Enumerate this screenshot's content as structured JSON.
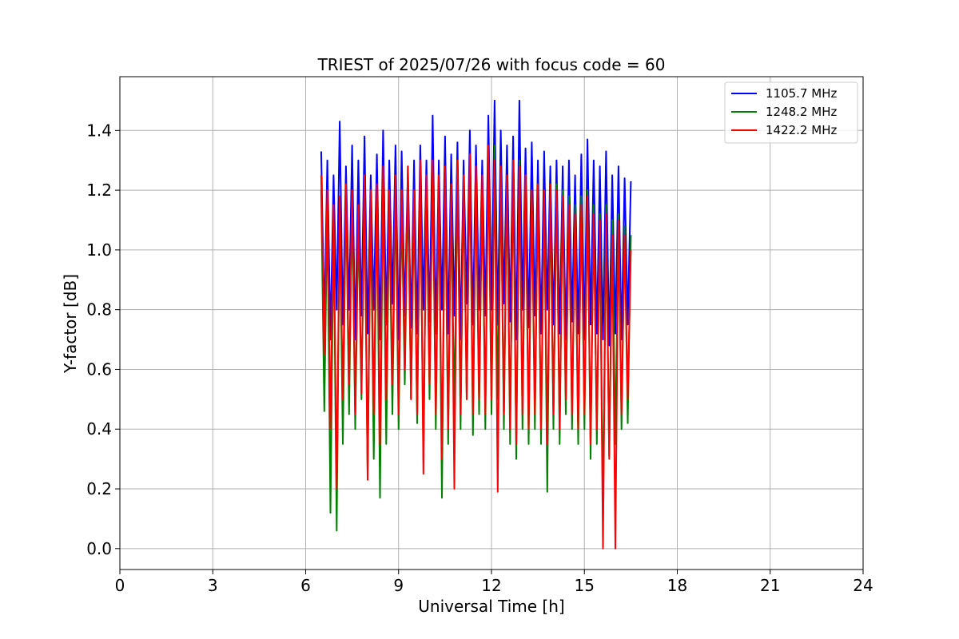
{
  "chart_data": {
    "type": "line",
    "title": "TRIEST of 2025/07/26 with focus code = 60",
    "xlabel": "Universal Time [h]",
    "ylabel": "Y-factor [dB]",
    "xlim": [
      0,
      24
    ],
    "ylim": [
      -0.07,
      1.58
    ],
    "xticks": [
      0,
      3,
      6,
      9,
      12,
      15,
      18,
      21,
      24
    ],
    "xtick_labels": [
      "0",
      "3",
      "6",
      "9",
      "12",
      "15",
      "18",
      "21",
      "24"
    ],
    "yticks": [
      0.0,
      0.2,
      0.4,
      0.6,
      0.8,
      1.0,
      1.2,
      1.4
    ],
    "ytick_labels": [
      "0.0",
      "0.2",
      "0.4",
      "0.6",
      "0.8",
      "1.0",
      "1.2",
      "1.4"
    ],
    "grid": true,
    "legend_position": "top-right",
    "series": [
      {
        "name": "1105.7 MHz",
        "color": "#0000ff",
        "x": [
          6.5,
          6.6,
          6.7,
          6.8,
          6.9,
          7.0,
          7.1,
          7.2,
          7.3,
          7.4,
          7.5,
          7.6,
          7.7,
          7.8,
          7.9,
          8.0,
          8.1,
          8.2,
          8.3,
          8.4,
          8.5,
          8.6,
          8.7,
          8.8,
          8.9,
          9.0,
          9.1,
          9.2,
          9.3,
          9.4,
          9.5,
          9.6,
          9.7,
          9.8,
          9.9,
          10.0,
          10.1,
          10.2,
          10.3,
          10.4,
          10.5,
          10.6,
          10.7,
          10.8,
          10.9,
          11.0,
          11.1,
          11.2,
          11.3,
          11.4,
          11.5,
          11.6,
          11.7,
          11.8,
          11.9,
          12.0,
          12.1,
          12.2,
          12.3,
          12.4,
          12.5,
          12.6,
          12.7,
          12.8,
          12.9,
          13.0,
          13.1,
          13.2,
          13.3,
          13.4,
          13.5,
          13.6,
          13.7,
          13.8,
          13.9,
          14.0,
          14.1,
          14.2,
          14.3,
          14.4,
          14.5,
          14.6,
          14.7,
          14.8,
          14.9,
          15.0,
          15.1,
          15.2,
          15.3,
          15.4,
          15.5,
          15.6,
          15.7,
          15.8,
          15.9,
          16.0,
          16.1,
          16.2,
          16.3,
          16.4,
          16.5
        ],
        "y": [
          1.33,
          0.75,
          1.3,
          0.7,
          1.25,
          0.8,
          1.43,
          0.75,
          1.28,
          0.8,
          1.35,
          0.7,
          1.3,
          0.78,
          1.38,
          0.72,
          1.25,
          0.8,
          1.32,
          0.7,
          1.4,
          0.75,
          1.3,
          0.82,
          1.35,
          0.7,
          1.33,
          0.78,
          1.28,
          0.74,
          1.3,
          0.72,
          1.35,
          0.8,
          1.3,
          0.76,
          1.45,
          0.72,
          1.3,
          0.8,
          1.38,
          0.72,
          1.32,
          0.78,
          1.36,
          0.7,
          1.3,
          0.82,
          1.4,
          0.75,
          1.35,
          0.8,
          1.3,
          0.78,
          1.45,
          0.8,
          1.5,
          0.75,
          1.4,
          0.82,
          1.35,
          0.76,
          1.38,
          0.7,
          1.5,
          0.8,
          1.34,
          0.74,
          1.36,
          0.78,
          1.3,
          0.72,
          1.33,
          0.8,
          1.28,
          0.75,
          1.3,
          0.72,
          1.28,
          0.7,
          1.3,
          0.76,
          1.25,
          0.72,
          1.32,
          0.7,
          1.37,
          0.75,
          1.3,
          0.72,
          1.28,
          0.7,
          1.33,
          0.68,
          1.25,
          0.72,
          1.28,
          0.7,
          1.24,
          0.75,
          1.23
        ]
      },
      {
        "name": "1248.2 MHz",
        "color": "#008000",
        "x": [
          6.5,
          6.6,
          6.7,
          6.8,
          6.9,
          7.0,
          7.1,
          7.2,
          7.3,
          7.4,
          7.5,
          7.6,
          7.7,
          7.8,
          7.9,
          8.0,
          8.1,
          8.2,
          8.3,
          8.4,
          8.5,
          8.6,
          8.7,
          8.8,
          8.9,
          9.0,
          9.1,
          9.2,
          9.3,
          9.4,
          9.5,
          9.6,
          9.7,
          9.8,
          9.9,
          10.0,
          10.1,
          10.2,
          10.3,
          10.4,
          10.5,
          10.6,
          10.7,
          10.8,
          10.9,
          11.0,
          11.1,
          11.2,
          11.3,
          11.4,
          11.5,
          11.6,
          11.7,
          11.8,
          11.9,
          12.0,
          12.1,
          12.2,
          12.3,
          12.4,
          12.5,
          12.6,
          12.7,
          12.8,
          12.9,
          13.0,
          13.1,
          13.2,
          13.3,
          13.4,
          13.5,
          13.6,
          13.7,
          13.8,
          13.9,
          14.0,
          14.1,
          14.2,
          14.3,
          14.4,
          14.5,
          14.6,
          14.7,
          14.8,
          14.9,
          15.0,
          15.1,
          15.2,
          15.3,
          15.4,
          15.5,
          15.6,
          15.7,
          15.8,
          15.9,
          16.0,
          16.1,
          16.2,
          16.3,
          16.4,
          16.5
        ],
        "y": [
          1.2,
          0.46,
          1.15,
          0.12,
          1.1,
          0.06,
          1.15,
          0.35,
          1.2,
          0.45,
          1.18,
          0.4,
          1.1,
          0.5,
          1.2,
          0.25,
          1.15,
          0.3,
          1.2,
          0.17,
          1.25,
          0.35,
          1.15,
          0.45,
          1.2,
          0.4,
          1.15,
          0.55,
          1.22,
          0.5,
          1.15,
          0.42,
          1.25,
          0.3,
          1.2,
          0.5,
          1.28,
          0.4,
          1.2,
          0.17,
          1.25,
          0.35,
          1.2,
          0.45,
          1.28,
          0.4,
          1.22,
          0.5,
          1.3,
          0.38,
          1.25,
          0.45,
          1.2,
          0.4,
          1.32,
          0.45,
          1.35,
          0.5,
          1.28,
          0.4,
          1.25,
          0.35,
          1.28,
          0.3,
          1.3,
          0.4,
          1.25,
          0.35,
          1.2,
          0.4,
          1.22,
          0.35,
          1.2,
          0.19,
          1.2,
          0.4,
          1.22,
          0.35,
          1.2,
          0.45,
          1.18,
          0.4,
          1.15,
          0.35,
          1.18,
          0.4,
          1.2,
          0.3,
          1.15,
          0.35,
          1.12,
          0.1,
          1.15,
          0.31,
          1.1,
          0.35,
          1.12,
          0.4,
          1.08,
          0.42,
          1.05
        ]
      },
      {
        "name": "1422.2 MHz",
        "color": "#ff0000",
        "x": [
          6.5,
          6.6,
          6.7,
          6.8,
          6.9,
          7.0,
          7.1,
          7.2,
          7.3,
          7.4,
          7.5,
          7.6,
          7.7,
          7.8,
          7.9,
          8.0,
          8.1,
          8.2,
          8.3,
          8.4,
          8.5,
          8.6,
          8.7,
          8.8,
          8.9,
          9.0,
          9.1,
          9.2,
          9.3,
          9.4,
          9.5,
          9.6,
          9.7,
          9.8,
          9.9,
          10.0,
          10.1,
          10.2,
          10.3,
          10.4,
          10.5,
          10.6,
          10.7,
          10.8,
          10.9,
          11.0,
          11.1,
          11.2,
          11.3,
          11.4,
          11.5,
          11.6,
          11.7,
          11.8,
          11.9,
          12.0,
          12.1,
          12.2,
          12.3,
          12.4,
          12.5,
          12.6,
          12.7,
          12.8,
          12.9,
          13.0,
          13.1,
          13.2,
          13.3,
          13.4,
          13.5,
          13.6,
          13.7,
          13.8,
          13.9,
          14.0,
          14.1,
          14.2,
          14.3,
          14.4,
          14.5,
          14.6,
          14.7,
          14.8,
          14.9,
          15.0,
          15.1,
          15.2,
          15.3,
          15.4,
          15.5,
          15.6,
          15.7,
          15.8,
          15.9,
          16.0,
          16.1,
          16.2,
          16.3,
          16.4,
          16.5
        ],
        "y": [
          1.25,
          0.65,
          1.2,
          0.4,
          1.15,
          0.2,
          1.18,
          0.5,
          1.22,
          0.55,
          1.2,
          0.45,
          1.15,
          0.52,
          1.25,
          0.23,
          1.2,
          0.45,
          1.22,
          0.35,
          1.28,
          0.5,
          1.2,
          0.55,
          1.25,
          0.45,
          1.2,
          0.6,
          1.28,
          0.5,
          1.2,
          0.45,
          1.3,
          0.25,
          1.25,
          0.55,
          1.3,
          0.45,
          1.25,
          0.3,
          1.28,
          0.4,
          1.22,
          0.2,
          1.3,
          0.45,
          1.25,
          0.5,
          1.32,
          0.45,
          1.28,
          0.5,
          1.25,
          0.45,
          1.35,
          0.5,
          1.3,
          0.19,
          1.28,
          0.45,
          1.25,
          0.4,
          1.3,
          0.35,
          1.28,
          0.45,
          1.25,
          0.4,
          1.2,
          0.45,
          1.22,
          0.4,
          1.2,
          0.35,
          1.22,
          0.45,
          1.2,
          0.4,
          1.18,
          0.5,
          1.15,
          0.45,
          1.12,
          0.4,
          1.15,
          0.45,
          1.18,
          0.35,
          1.12,
          0.4,
          1.1,
          0.0,
          1.12,
          0.3,
          1.05,
          0.0,
          1.1,
          0.45,
          1.05,
          0.5,
          1.0
        ]
      }
    ]
  }
}
